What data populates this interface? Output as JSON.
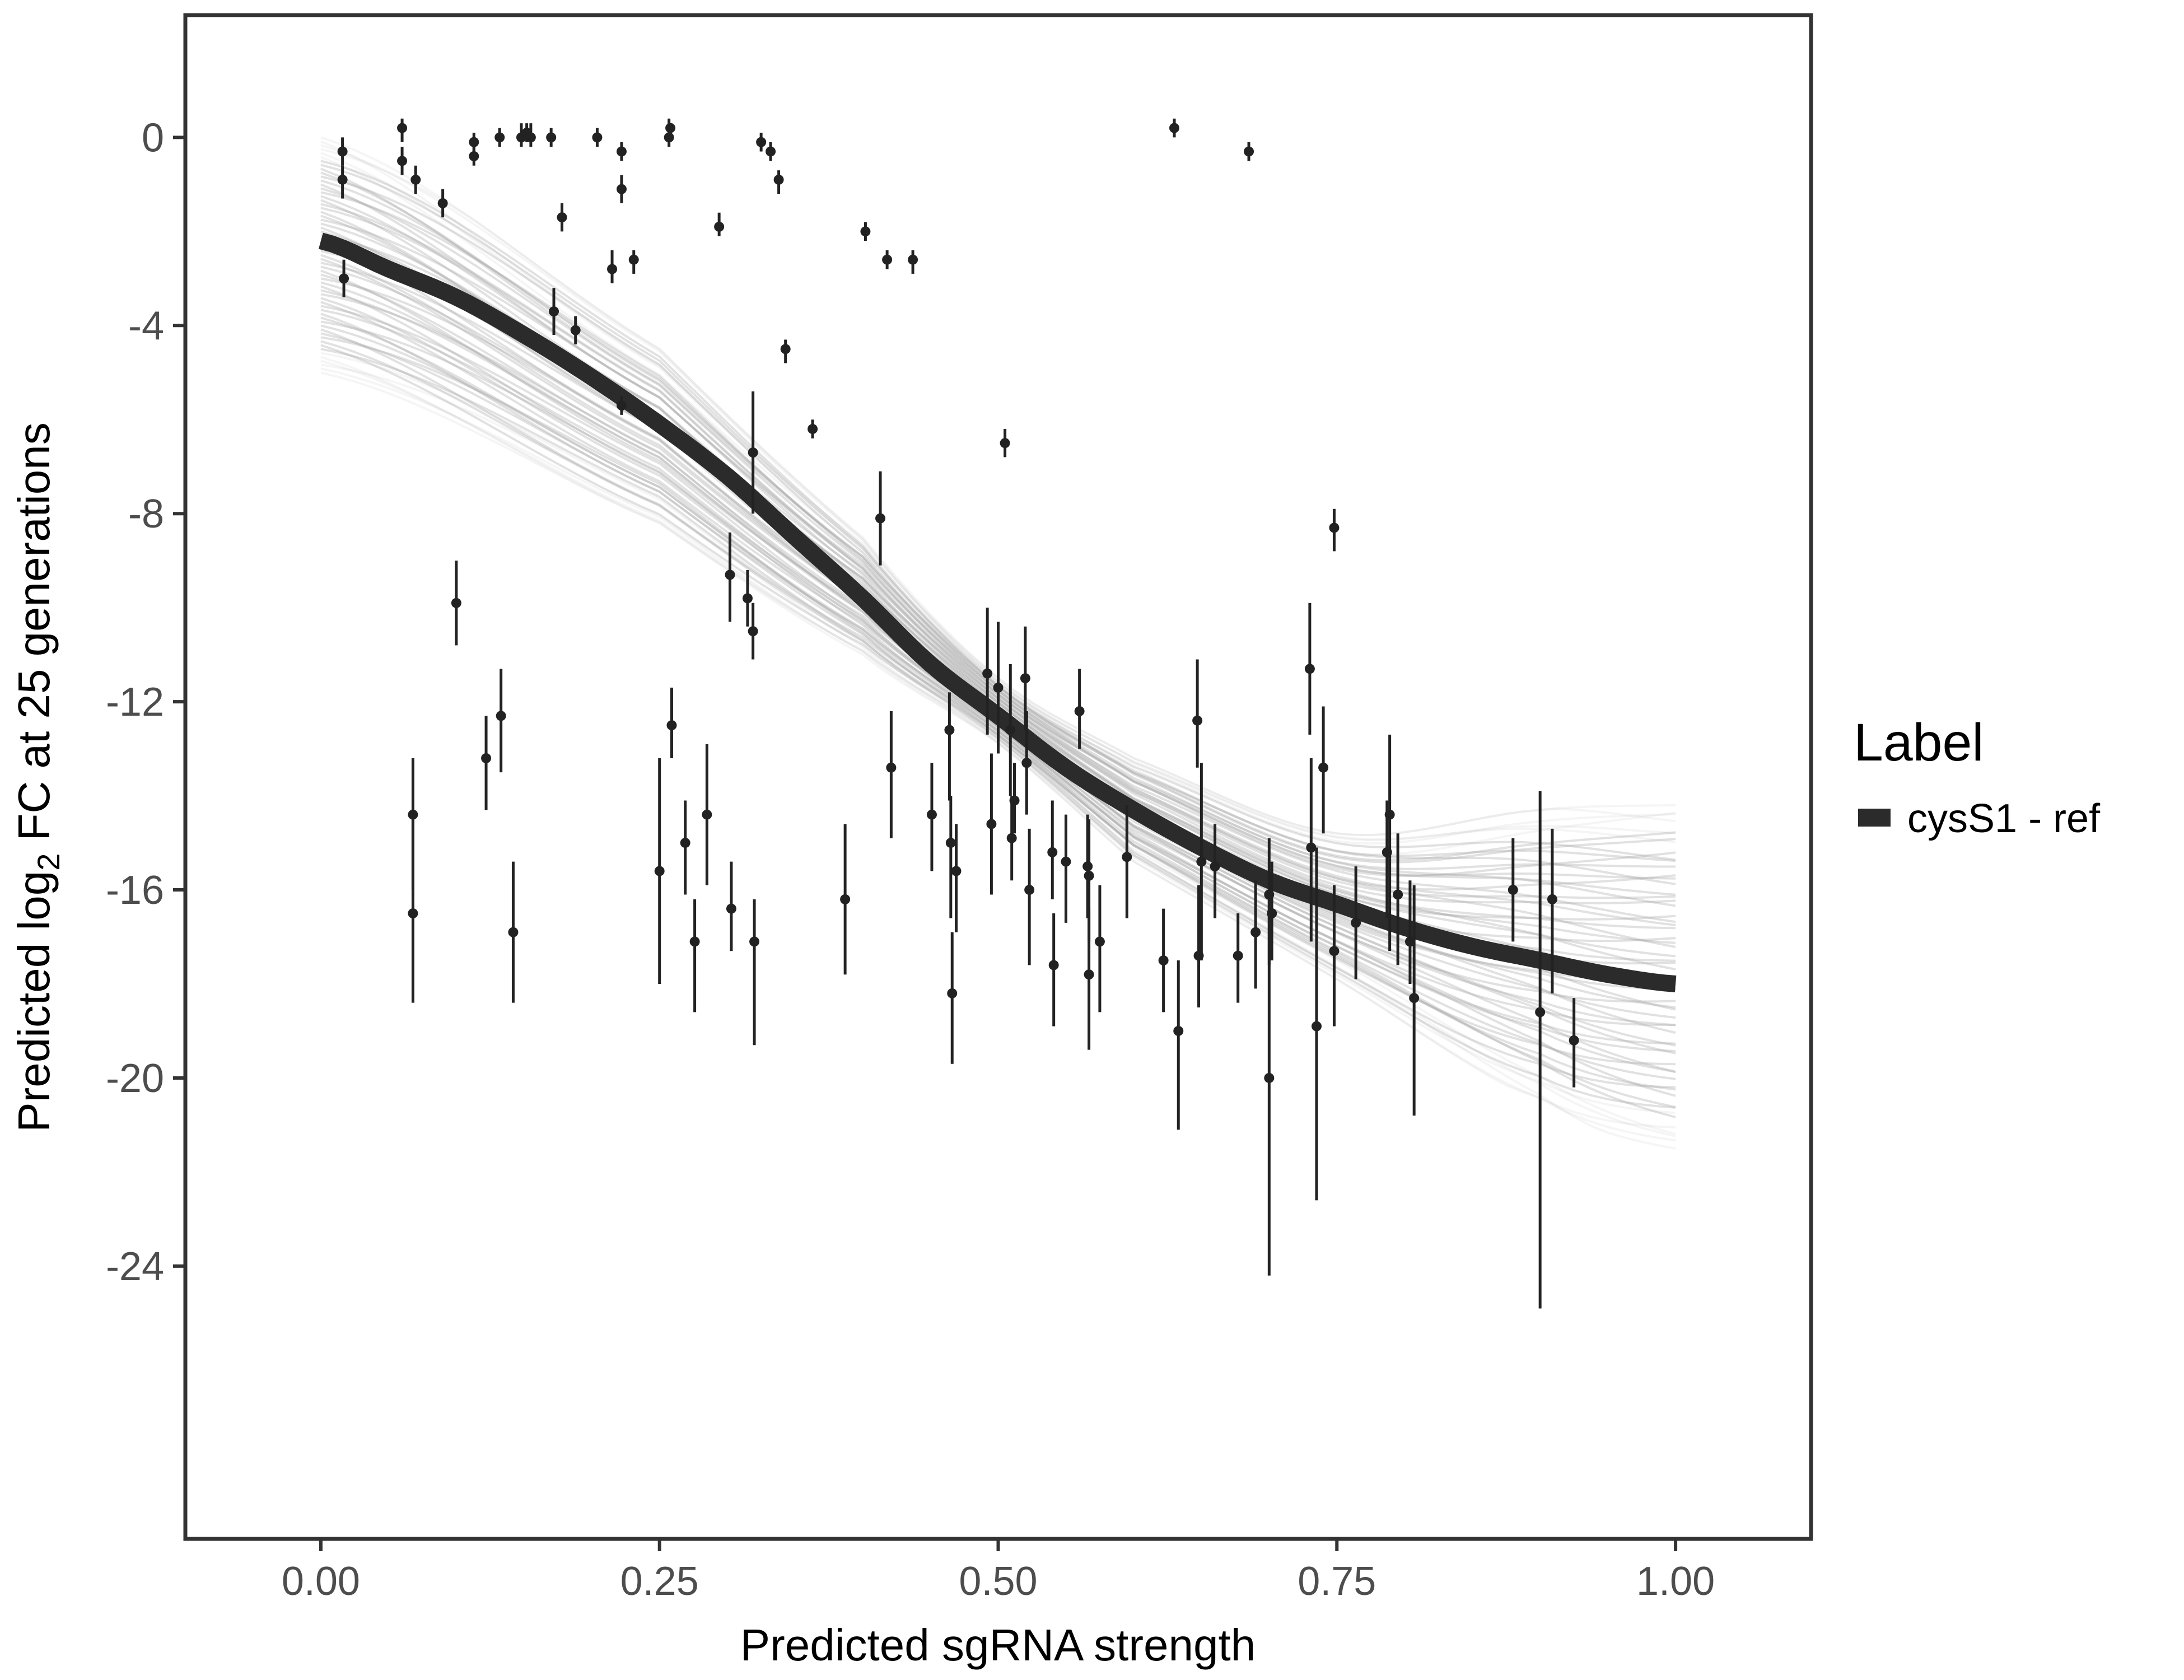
{
  "chart_data": {
    "type": "scatter",
    "title": "",
    "xlabel": "Predicted sgRNA strength",
    "ylabel": {
      "prefix": "Predicted  log",
      "subscript": "2",
      "suffix": " FC at 25 generations"
    },
    "xlim": [
      -0.1,
      1.1
    ],
    "ylim": [
      -29.8,
      2.6
    ],
    "x_ticks": [
      0,
      0.25,
      0.5,
      0.75,
      1
    ],
    "x_tick_labels": [
      "0.00",
      "0.25",
      "0.50",
      "0.75",
      "1.00"
    ],
    "y_ticks": [
      0,
      -4,
      -8,
      -12,
      -16,
      -20,
      -24
    ],
    "y_tick_labels": [
      "0",
      "-4",
      "-8",
      "-12",
      "-16",
      "-20",
      "-24"
    ],
    "grid": false,
    "legend": {
      "title": "Label",
      "position": "right",
      "entries": [
        {
          "name": "cysS1 - ref",
          "color": "#2b2b2b"
        }
      ]
    },
    "fit_line": {
      "name": "cysS1 - ref",
      "color": "#2b2b2b",
      "x": [
        0,
        0.05,
        0.1,
        0.15,
        0.2,
        0.25,
        0.3,
        0.35,
        0.4,
        0.45,
        0.5,
        0.55,
        0.6,
        0.65,
        0.7,
        0.75,
        0.8,
        0.85,
        0.9,
        0.95,
        1.0
      ],
      "y": [
        -2.2,
        -2.8,
        -3.4,
        -4.2,
        -5.1,
        -6.1,
        -7.2,
        -8.5,
        -9.8,
        -11.2,
        -12.3,
        -13.4,
        -14.3,
        -15.1,
        -15.8,
        -16.3,
        -16.8,
        -17.2,
        -17.5,
        -17.8,
        -18.0
      ]
    },
    "posterior_band": {
      "color": "#aaaaaa",
      "x": [
        0,
        0.25,
        0.4,
        0.5,
        0.6,
        0.75,
        0.9,
        1.0
      ],
      "upper": [
        0.0,
        -4.5,
        -8.5,
        -11.5,
        -13.2,
        -14.8,
        -14.3,
        -14.2
      ],
      "lower": [
        -5.0,
        -8.2,
        -11.0,
        -12.9,
        -15.4,
        -17.9,
        -20.5,
        -21.5
      ]
    },
    "points": [
      {
        "x": 0.016,
        "y": -0.3,
        "lo": -0.6,
        "hi": 0.0
      },
      {
        "x": 0.016,
        "y": -0.9,
        "lo": -1.3,
        "hi": -0.6
      },
      {
        "x": 0.017,
        "y": -3.0,
        "lo": -3.4,
        "hi": -2.6
      },
      {
        "x": 0.06,
        "y": 0.2,
        "lo": -0.1,
        "hi": 0.4
      },
      {
        "x": 0.06,
        "y": -0.5,
        "lo": -0.8,
        "hi": -0.2
      },
      {
        "x": 0.07,
        "y": -0.9,
        "lo": -1.2,
        "hi": -0.6
      },
      {
        "x": 0.068,
        "y": -14.4,
        "lo": -16.0,
        "hi": -13.2
      },
      {
        "x": 0.068,
        "y": -16.5,
        "lo": -18.4,
        "hi": -14.5
      },
      {
        "x": 0.09,
        "y": -1.4,
        "lo": -1.7,
        "hi": -1.1
      },
      {
        "x": 0.1,
        "y": -9.9,
        "lo": -10.8,
        "hi": -9.0
      },
      {
        "x": 0.113,
        "y": -0.1,
        "lo": -0.3,
        "hi": 0.1
      },
      {
        "x": 0.113,
        "y": -0.4,
        "lo": -0.6,
        "hi": -0.1
      },
      {
        "x": 0.122,
        "y": -13.2,
        "lo": -14.3,
        "hi": -12.3
      },
      {
        "x": 0.132,
        "y": 0.0,
        "lo": -0.2,
        "hi": 0.2
      },
      {
        "x": 0.133,
        "y": -12.3,
        "lo": -13.5,
        "hi": -11.3
      },
      {
        "x": 0.142,
        "y": -16.9,
        "lo": -18.4,
        "hi": -15.4
      },
      {
        "x": 0.148,
        "y": 0.0,
        "lo": -0.2,
        "hi": 0.3
      },
      {
        "x": 0.152,
        "y": 0.1,
        "lo": -0.1,
        "hi": 0.3
      },
      {
        "x": 0.155,
        "y": 0.0,
        "lo": -0.2,
        "hi": 0.3
      },
      {
        "x": 0.17,
        "y": 0.0,
        "lo": -0.2,
        "hi": 0.2
      },
      {
        "x": 0.172,
        "y": -3.7,
        "lo": -4.2,
        "hi": -3.2
      },
      {
        "x": 0.178,
        "y": -1.7,
        "lo": -2.0,
        "hi": -1.4
      },
      {
        "x": 0.188,
        "y": -4.1,
        "lo": -4.4,
        "hi": -3.8
      },
      {
        "x": 0.204,
        "y": 0.0,
        "lo": -0.2,
        "hi": 0.2
      },
      {
        "x": 0.215,
        "y": -2.8,
        "lo": -3.1,
        "hi": -2.4
      },
      {
        "x": 0.222,
        "y": -0.3,
        "lo": -0.5,
        "hi": -0.1
      },
      {
        "x": 0.222,
        "y": -1.1,
        "lo": -1.4,
        "hi": -0.8
      },
      {
        "x": 0.222,
        "y": -5.7,
        "lo": -5.9,
        "hi": -5.5
      },
      {
        "x": 0.231,
        "y": -2.6,
        "lo": -2.9,
        "hi": -2.4
      },
      {
        "x": 0.25,
        "y": -15.6,
        "lo": -18.0,
        "hi": -13.2
      },
      {
        "x": 0.257,
        "y": 0.0,
        "lo": -0.2,
        "hi": 0.4
      },
      {
        "x": 0.258,
        "y": 0.2,
        "lo": 0.0,
        "hi": 0.3
      },
      {
        "x": 0.259,
        "y": -12.5,
        "lo": -13.2,
        "hi": -11.7
      },
      {
        "x": 0.269,
        "y": -15.0,
        "lo": -16.1,
        "hi": -14.1
      },
      {
        "x": 0.276,
        "y": -17.1,
        "lo": -18.6,
        "hi": -16.2
      },
      {
        "x": 0.285,
        "y": -14.4,
        "lo": -15.9,
        "hi": -12.9
      },
      {
        "x": 0.294,
        "y": -1.9,
        "lo": -2.1,
        "hi": -1.6
      },
      {
        "x": 0.302,
        "y": -9.3,
        "lo": -10.3,
        "hi": -8.4
      },
      {
        "x": 0.303,
        "y": -16.4,
        "lo": -17.3,
        "hi": -15.4
      },
      {
        "x": 0.315,
        "y": -9.8,
        "lo": -10.4,
        "hi": -9.2
      },
      {
        "x": 0.319,
        "y": -10.5,
        "lo": -11.1,
        "hi": -9.9
      },
      {
        "x": 0.319,
        "y": -6.7,
        "lo": -8.0,
        "hi": -5.4
      },
      {
        "x": 0.32,
        "y": -17.1,
        "lo": -19.3,
        "hi": -16.2
      },
      {
        "x": 0.325,
        "y": -0.1,
        "lo": -0.3,
        "hi": 0.1
      },
      {
        "x": 0.332,
        "y": -0.3,
        "lo": -0.5,
        "hi": -0.1
      },
      {
        "x": 0.338,
        "y": -0.9,
        "lo": -1.2,
        "hi": -0.7
      },
      {
        "x": 0.343,
        "y": -4.5,
        "lo": -4.8,
        "hi": -4.3
      },
      {
        "x": 0.363,
        "y": -6.2,
        "lo": -6.4,
        "hi": -6.0
      },
      {
        "x": 0.387,
        "y": -16.2,
        "lo": -17.8,
        "hi": -14.6
      },
      {
        "x": 0.402,
        "y": -2.0,
        "lo": -2.2,
        "hi": -1.8
      },
      {
        "x": 0.413,
        "y": -8.1,
        "lo": -9.1,
        "hi": -7.1
      },
      {
        "x": 0.418,
        "y": -2.6,
        "lo": -2.8,
        "hi": -2.4
      },
      {
        "x": 0.421,
        "y": -13.4,
        "lo": -14.9,
        "hi": -12.2
      },
      {
        "x": 0.437,
        "y": -2.6,
        "lo": -2.9,
        "hi": -2.4
      },
      {
        "x": 0.451,
        "y": -14.4,
        "lo": -15.6,
        "hi": -13.3
      },
      {
        "x": 0.464,
        "y": -12.6,
        "lo": -14.1,
        "hi": -11.8
      },
      {
        "x": 0.465,
        "y": -15.0,
        "lo": -16.6,
        "hi": -14.0
      },
      {
        "x": 0.466,
        "y": -18.2,
        "lo": -19.7,
        "hi": -16.9
      },
      {
        "x": 0.469,
        "y": -15.6,
        "lo": -16.9,
        "hi": -14.6
      },
      {
        "x": 0.492,
        "y": -11.4,
        "lo": -12.7,
        "hi": -10.0
      },
      {
        "x": 0.495,
        "y": -14.6,
        "lo": -16.1,
        "hi": -13.1
      },
      {
        "x": 0.5,
        "y": -11.7,
        "lo": -13.1,
        "hi": -10.3
      },
      {
        "x": 0.505,
        "y": -6.5,
        "lo": -6.8,
        "hi": -6.2
      },
      {
        "x": 0.509,
        "y": -12.6,
        "lo": -14.0,
        "hi": -11.2
      },
      {
        "x": 0.51,
        "y": -14.9,
        "lo": -15.8,
        "hi": -14.0
      },
      {
        "x": 0.512,
        "y": -14.1,
        "lo": -14.8,
        "hi": -13.3
      },
      {
        "x": 0.52,
        "y": -11.5,
        "lo": -12.6,
        "hi": -10.4
      },
      {
        "x": 0.521,
        "y": -13.3,
        "lo": -14.4,
        "hi": -12.2
      },
      {
        "x": 0.523,
        "y": -16.0,
        "lo": -17.6,
        "hi": -14.7
      },
      {
        "x": 0.54,
        "y": -15.2,
        "lo": -16.2,
        "hi": -14.1
      },
      {
        "x": 0.541,
        "y": -17.6,
        "lo": -18.9,
        "hi": -16.5
      },
      {
        "x": 0.55,
        "y": -15.4,
        "lo": -16.7,
        "hi": -14.4
      },
      {
        "x": 0.56,
        "y": -12.2,
        "lo": -13.0,
        "hi": -11.3
      },
      {
        "x": 0.566,
        "y": -15.5,
        "lo": -16.6,
        "hi": -14.4
      },
      {
        "x": 0.567,
        "y": -17.8,
        "lo": -19.4,
        "hi": -16.4
      },
      {
        "x": 0.567,
        "y": -15.7,
        "lo": -17.1,
        "hi": -14.5
      },
      {
        "x": 0.575,
        "y": -17.1,
        "lo": -18.6,
        "hi": -15.9
      },
      {
        "x": 0.595,
        "y": -15.3,
        "lo": -16.6,
        "hi": -14.2
      },
      {
        "x": 0.622,
        "y": -17.5,
        "lo": -18.6,
        "hi": -16.4
      },
      {
        "x": 0.63,
        "y": 0.2,
        "lo": 0.0,
        "hi": 0.4
      },
      {
        "x": 0.633,
        "y": -19.0,
        "lo": -21.1,
        "hi": -17.5
      },
      {
        "x": 0.647,
        "y": -12.4,
        "lo": -13.4,
        "hi": -11.1
      },
      {
        "x": 0.648,
        "y": -17.4,
        "lo": -18.5,
        "hi": -15.9
      },
      {
        "x": 0.65,
        "y": -15.4,
        "lo": -17.5,
        "hi": -13.3
      },
      {
        "x": 0.66,
        "y": -15.5,
        "lo": -16.6,
        "hi": -14.6
      },
      {
        "x": 0.677,
        "y": -17.4,
        "lo": -18.4,
        "hi": -16.5
      },
      {
        "x": 0.685,
        "y": -0.3,
        "lo": -0.5,
        "hi": -0.1
      },
      {
        "x": 0.69,
        "y": -16.9,
        "lo": -18.1,
        "hi": -15.8
      },
      {
        "x": 0.7,
        "y": -16.1,
        "lo": -17.6,
        "hi": -14.9
      },
      {
        "x": 0.7,
        "y": -20.0,
        "lo": -24.2,
        "hi": -16.0
      },
      {
        "x": 0.702,
        "y": -16.5,
        "lo": -17.5,
        "hi": -15.4
      },
      {
        "x": 0.73,
        "y": -11.3,
        "lo": -12.7,
        "hi": -9.9
      },
      {
        "x": 0.731,
        "y": -15.1,
        "lo": -17.1,
        "hi": -13.2
      },
      {
        "x": 0.735,
        "y": -18.9,
        "lo": -22.6,
        "hi": -15.1
      },
      {
        "x": 0.74,
        "y": -13.4,
        "lo": -14.8,
        "hi": -12.1
      },
      {
        "x": 0.748,
        "y": -8.3,
        "lo": -8.8,
        "hi": -7.9
      },
      {
        "x": 0.748,
        "y": -17.3,
        "lo": -18.9,
        "hi": -15.9
      },
      {
        "x": 0.764,
        "y": -16.7,
        "lo": -17.9,
        "hi": -15.5
      },
      {
        "x": 0.787,
        "y": -15.2,
        "lo": -16.6,
        "hi": -14.1
      },
      {
        "x": 0.789,
        "y": -14.4,
        "lo": -17.3,
        "hi": -12.7
      },
      {
        "x": 0.795,
        "y": -16.1,
        "lo": -17.6,
        "hi": -14.8
      },
      {
        "x": 0.804,
        "y": -17.1,
        "lo": -18.0,
        "hi": -15.8
      },
      {
        "x": 0.807,
        "y": -18.3,
        "lo": -20.8,
        "hi": -15.9
      },
      {
        "x": 0.88,
        "y": -16.0,
        "lo": -17.1,
        "hi": -14.9
      },
      {
        "x": 0.9,
        "y": -18.6,
        "lo": -24.9,
        "hi": -13.9
      },
      {
        "x": 0.909,
        "y": -16.2,
        "lo": -18.2,
        "hi": -14.7
      },
      {
        "x": 0.925,
        "y": -19.2,
        "lo": -20.2,
        "hi": -18.3
      }
    ]
  }
}
